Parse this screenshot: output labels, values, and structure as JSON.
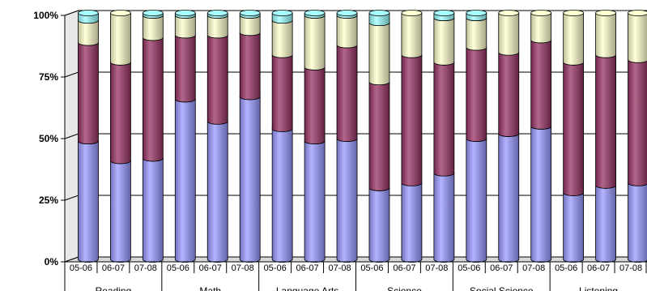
{
  "chart_data": {
    "type": "bar",
    "stacked": true,
    "percent": true,
    "style": "3d-cylinder",
    "title": "",
    "xlabel": "",
    "ylabel": "",
    "ylim": [
      0,
      100
    ],
    "yticks": [
      "0%",
      "25%",
      "50%",
      "75%",
      "100%"
    ],
    "grid": true,
    "legend": "none",
    "groups": [
      {
        "label": "Reading",
        "categories": [
          "05-06",
          "06-07",
          "07-08"
        ]
      },
      {
        "label": "Math",
        "categories": [
          "05-06",
          "06-07",
          "07-08"
        ]
      },
      {
        "label": "Language Arts",
        "categories": [
          "05-06",
          "06-07",
          "07-08"
        ]
      },
      {
        "label": "Science",
        "categories": [
          "05-06",
          "06-07",
          "07-08"
        ]
      },
      {
        "label": "Social Science",
        "categories": [
          "05-06",
          "06-07",
          "07-08"
        ]
      },
      {
        "label": "Listening",
        "categories": [
          "05-06",
          "06-07",
          "07-08"
        ]
      }
    ],
    "series": [
      {
        "color": "#9999ff",
        "values": [
          48,
          40,
          41,
          65,
          56,
          66,
          53,
          48,
          49,
          29,
          31,
          35,
          49,
          51,
          54,
          27,
          30,
          31
        ]
      },
      {
        "color": "#993366",
        "values": [
          40,
          40,
          49,
          26,
          35,
          26,
          30,
          30,
          38,
          43,
          52,
          45,
          37,
          33,
          35,
          53,
          53,
          50
        ]
      },
      {
        "color": "#ffffcc",
        "values": [
          9,
          20,
          9,
          8,
          8,
          7,
          14,
          21,
          12,
          24,
          17,
          18,
          12,
          16,
          11,
          20,
          17,
          19
        ]
      },
      {
        "color": "#99ffff",
        "values": [
          3,
          0,
          1,
          1,
          1,
          1,
          3,
          1,
          1,
          4,
          0,
          2,
          2,
          0,
          0,
          0,
          0,
          0
        ]
      }
    ]
  }
}
